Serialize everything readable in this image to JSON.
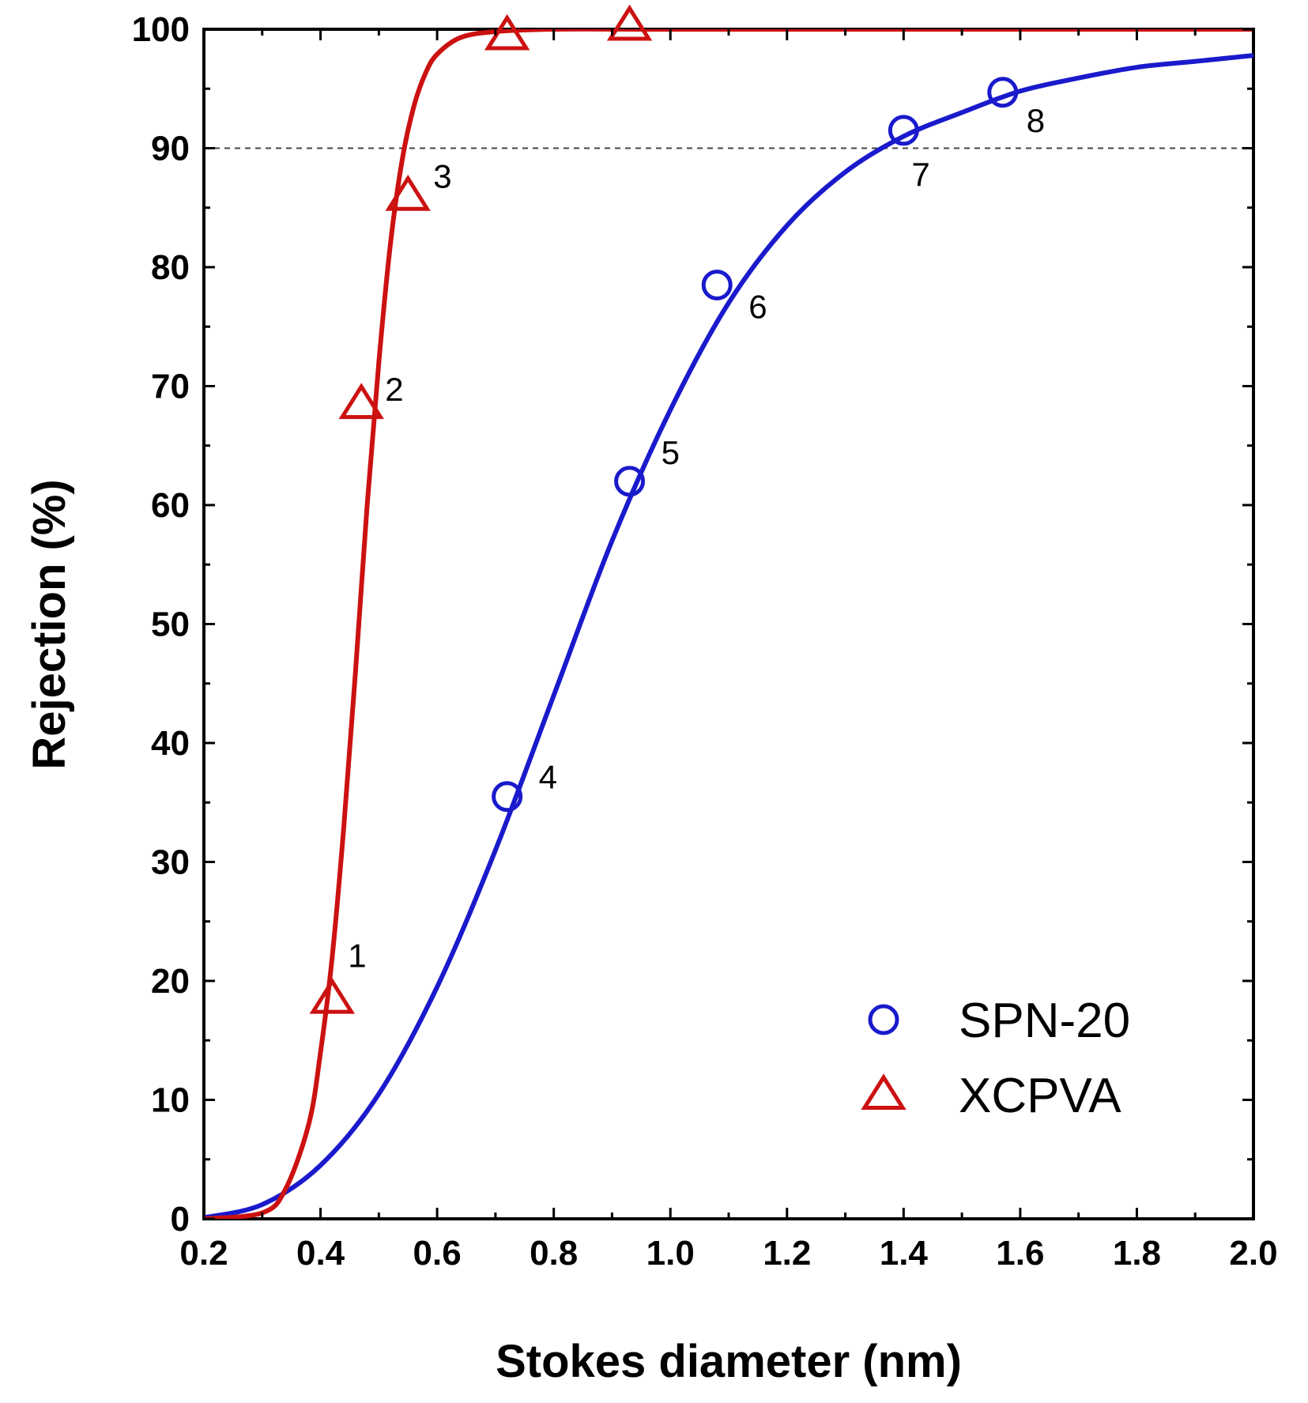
{
  "chart_data": {
    "type": "scatter",
    "xlabel": "Stokes diameter (nm)",
    "ylabel": "Rejection (%)",
    "xlim": [
      0.2,
      2.0
    ],
    "ylim": [
      0,
      100
    ],
    "xticks": [
      "0.2",
      "0.4",
      "0.6",
      "0.8",
      "1.0",
      "1.2",
      "1.4",
      "1.6",
      "1.8",
      "2.0"
    ],
    "yticks": [
      "0",
      "10",
      "20",
      "30",
      "40",
      "50",
      "60",
      "70",
      "80",
      "90",
      "100"
    ],
    "grid": false,
    "reference_line": {
      "y": 90,
      "style": "dashed"
    },
    "legend": {
      "position": "bottom-right",
      "entries": [
        "SPN-20",
        "XCPVA"
      ]
    },
    "series": [
      {
        "name": "SPN-20",
        "marker": "circle",
        "color": "#1a1acc",
        "points": [
          {
            "x": 0.72,
            "y": 35.5,
            "label": "4"
          },
          {
            "x": 0.93,
            "y": 62.0,
            "label": "5"
          },
          {
            "x": 1.08,
            "y": 78.5,
            "label": "6"
          },
          {
            "x": 1.4,
            "y": 91.5,
            "label": "7"
          },
          {
            "x": 1.57,
            "y": 94.7,
            "label": "8"
          }
        ],
        "fit": {
          "x": [
            0.2,
            0.3,
            0.4,
            0.5,
            0.6,
            0.7,
            0.8,
            0.9,
            1.0,
            1.1,
            1.2,
            1.3,
            1.4,
            1.5,
            1.6,
            1.7,
            1.8,
            1.9,
            2.0
          ],
          "y": [
            0.1,
            1.2,
            4.5,
            10.5,
            19.5,
            31,
            44,
            57,
            68,
            77,
            83.5,
            88,
            91,
            93,
            94.8,
            95.9,
            96.8,
            97.3,
            97.8
          ]
        }
      },
      {
        "name": "XCPVA",
        "marker": "triangle",
        "color": "#cc1111",
        "points": [
          {
            "x": 0.42,
            "y": 18.5,
            "label": "1"
          },
          {
            "x": 0.47,
            "y": 68.5,
            "label": "2"
          },
          {
            "x": 0.55,
            "y": 86.0,
            "label": "3"
          },
          {
            "x": 0.72,
            "y": 99.5,
            "label": ""
          },
          {
            "x": 0.93,
            "y": 100.3,
            "label": ""
          }
        ],
        "fit": {
          "x": [
            0.2,
            0.3,
            0.34,
            0.38,
            0.4,
            0.42,
            0.44,
            0.46,
            0.48,
            0.5,
            0.52,
            0.54,
            0.56,
            0.58,
            0.6,
            0.64,
            0.7,
            0.8,
            1.0,
            1.4,
            2.0
          ],
          "y": [
            0,
            0.5,
            2.5,
            8,
            14,
            22,
            33,
            46,
            60,
            72,
            82,
            89,
            93.5,
            96.3,
            97.9,
            99.3,
            99.8,
            100,
            100,
            100,
            100
          ]
        }
      }
    ]
  }
}
